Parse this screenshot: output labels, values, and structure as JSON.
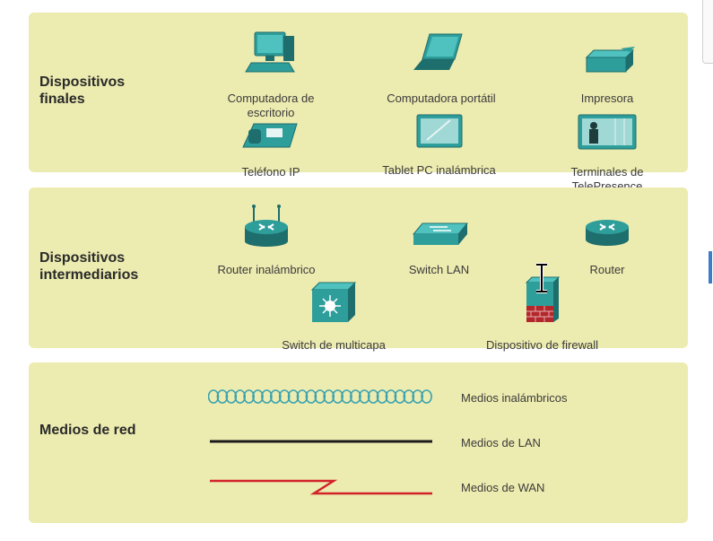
{
  "sections": {
    "end_devices": {
      "title": "Dispositivos\nfinales",
      "items": [
        {
          "label": "Computadora de\nescritorio",
          "icon": "desktop-computer-icon"
        },
        {
          "label": "Computadora portátil",
          "icon": "laptop-icon"
        },
        {
          "label": "Impresora",
          "icon": "printer-icon"
        },
        {
          "label": "Teléfono IP",
          "icon": "ip-phone-icon"
        },
        {
          "label": "Tablet PC inalámbrica",
          "icon": "tablet-icon"
        },
        {
          "label": "Terminales de\nTelePresence",
          "icon": "telepresence-icon"
        }
      ]
    },
    "intermediary": {
      "title": "Dispositivos\nintermediarios",
      "items": [
        {
          "label": "Router inalámbrico",
          "icon": "wireless-router-icon"
        },
        {
          "label": "Switch LAN",
          "icon": "lan-switch-icon"
        },
        {
          "label": "Router",
          "icon": "router-icon"
        },
        {
          "label": "Switch de multicapa",
          "icon": "multilayer-switch-icon"
        },
        {
          "label": "Dispositivo de firewall",
          "icon": "firewall-icon"
        }
      ]
    },
    "media": {
      "title": "Medios de red",
      "items": [
        {
          "label": "Medios inalámbricos",
          "icon": "wireless-media-icon"
        },
        {
          "label": "Medios de LAN",
          "icon": "lan-media-icon"
        },
        {
          "label": "Medios de WAN",
          "icon": "wan-media-icon"
        }
      ]
    }
  },
  "colors": {
    "panel_bg": "#ecebb0",
    "device_teal": "#2e9e9b",
    "device_dark": "#1d6e6c",
    "lan_line": "#1a1a1a",
    "wan_line": "#d2232a",
    "wireless_wave": "#3aa3b0"
  }
}
